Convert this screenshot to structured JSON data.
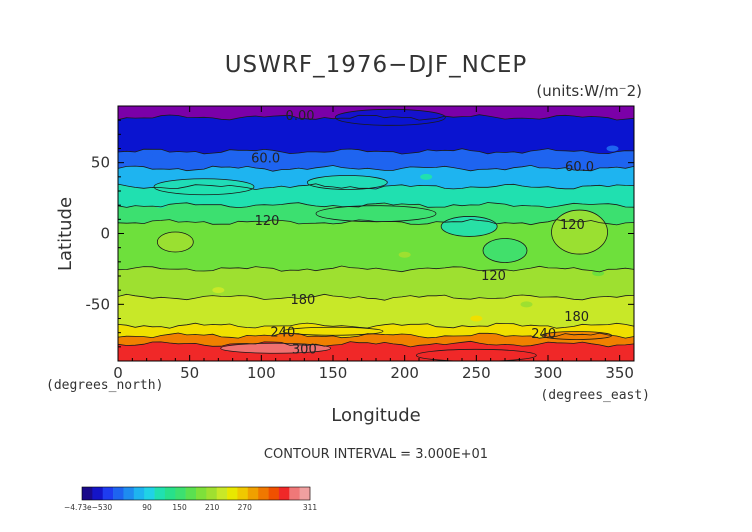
{
  "chart_data": {
    "type": "contour",
    "title": "USWRF_1976−DJF_NCEP",
    "units": "(units:W/m⁻2)",
    "xlabel": "Longitude",
    "ylabel": "Latitude",
    "x_unit_note": "(degrees_east)",
    "y_unit_note": "(degrees_north)",
    "xlim": [
      0,
      360
    ],
    "ylim": [
      -90,
      90
    ],
    "xticks": [
      0,
      50,
      100,
      150,
      200,
      250,
      300,
      350
    ],
    "yticks": [
      50,
      0,
      -50
    ],
    "contour_interval_text": "CONTOUR INTERVAL = 3.000E+01",
    "contour_interval": 30,
    "bands": [
      {
        "lat_top": 90,
        "lat_bottom": 82,
        "value": "0.00",
        "color": "#7b00a8"
      },
      {
        "lat_top": 82,
        "lat_bottom": 58,
        "value": "30",
        "color": "#0a14d0"
      },
      {
        "lat_top": 58,
        "lat_bottom": 46,
        "value": "60",
        "color": "#1e64f0"
      },
      {
        "lat_top": 46,
        "lat_bottom": 33,
        "value": "90",
        "color": "#1eb4f0"
      },
      {
        "lat_top": 33,
        "lat_bottom": 20,
        "value": "120",
        "color": "#20e0b0"
      },
      {
        "lat_top": 20,
        "lat_bottom": 8,
        "value": "150",
        "color": "#3ce070"
      },
      {
        "lat_top": 8,
        "lat_bottom": -25,
        "value": "150",
        "color": "#6ee03c"
      },
      {
        "lat_top": -25,
        "lat_bottom": -45,
        "value": "180",
        "color": "#9ee030"
      },
      {
        "lat_top": -45,
        "lat_bottom": -65,
        "value": "210",
        "color": "#c8e828"
      },
      {
        "lat_top": -65,
        "lat_bottom": -72,
        "value": "240",
        "color": "#f0e000"
      },
      {
        "lat_top": -72,
        "lat_bottom": -78,
        "value": "270",
        "color": "#f08000"
      },
      {
        "lat_top": -78,
        "lat_bottom": -90,
        "value": "300",
        "color": "#f02828"
      }
    ],
    "contour_labels": [
      {
        "text": "0.00",
        "lon": 127,
        "lat": 83
      },
      {
        "text": "60.0",
        "lon": 103,
        "lat": 53
      },
      {
        "text": "60.0",
        "lon": 322,
        "lat": 47
      },
      {
        "text": "120",
        "lon": 104,
        "lat": 9
      },
      {
        "text": "120",
        "lon": 317,
        "lat": 6
      },
      {
        "text": "120",
        "lon": 262,
        "lat": -30
      },
      {
        "text": "180",
        "lon": 129,
        "lat": -47
      },
      {
        "text": "180",
        "lon": 320,
        "lat": -59
      },
      {
        "text": "240",
        "lon": 115,
        "lat": -70
      },
      {
        "text": "240",
        "lon": 297,
        "lat": -71
      },
      {
        "text": "300",
        "lon": 130,
        "lat": -82
      }
    ],
    "colorbar": {
      "ticks": [
        "−4.73e−530",
        "90",
        "150",
        "210",
        "270",
        "311"
      ],
      "colors": [
        "#1a0a8a",
        "#1414c8",
        "#1e3cf0",
        "#1e64f0",
        "#1e8cf0",
        "#1eb4f0",
        "#20d2e6",
        "#20e0b0",
        "#28e08a",
        "#3ce070",
        "#5ae050",
        "#7ee03a",
        "#a0e030",
        "#c8e828",
        "#e8e800",
        "#f0c800",
        "#f0a000",
        "#f07800",
        "#f05000",
        "#f02828",
        "#f07878",
        "#f0a0a0"
      ]
    }
  }
}
